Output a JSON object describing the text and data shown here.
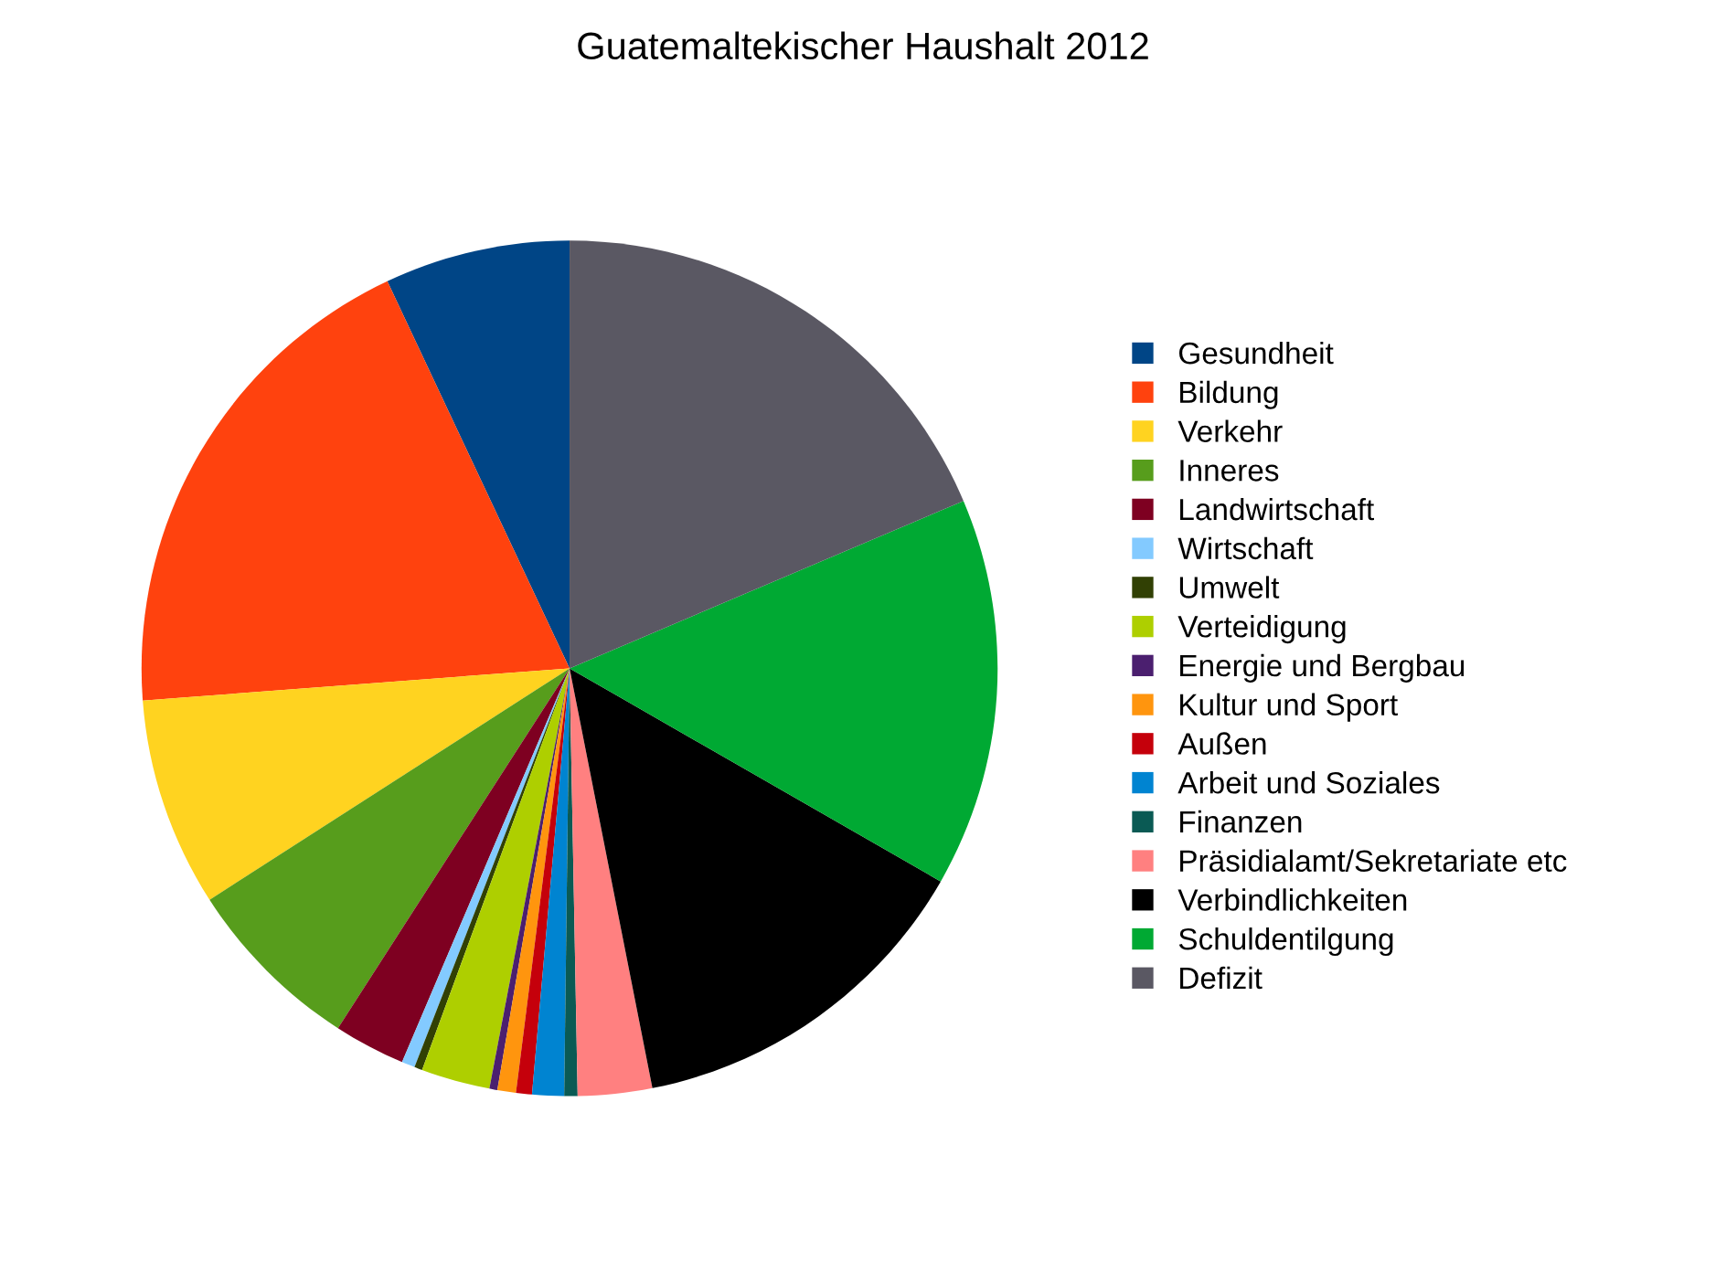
{
  "chart_data": {
    "type": "pie",
    "title": "Guatemaltekischer Haushalt 2012",
    "categories": [
      "Gesundheit",
      "Bildung",
      "Verkehr",
      "Inneres",
      "Landwirtschaft",
      "Wirtschaft",
      "Umwelt",
      "Verteidigung",
      "Energie und Bergbau",
      "Kultur und Sport",
      "Außen",
      "Arbeit und Soziales",
      "Finanzen",
      "Präsidialamt/Sekretariate etc",
      "Verbindlichkeiten",
      "Schuldentilgung",
      "Defizit"
    ],
    "values": [
      7.0,
      19.2,
      7.9,
      6.8,
      2.7,
      0.5,
      0.3,
      2.6,
      0.3,
      0.7,
      0.6,
      1.2,
      0.5,
      2.8,
      13.6,
      14.7,
      18.6
    ],
    "colors": [
      "#004586",
      "#ff420e",
      "#ffd320",
      "#579d1c",
      "#7e0021",
      "#83caff",
      "#314004",
      "#aecf00",
      "#4b1f6f",
      "#ff950e",
      "#c5000b",
      "#0084d1",
      "#0a5a54",
      "#ff8080",
      "#000000",
      "#00a933",
      "#5a5863"
    ],
    "legend": "right"
  }
}
